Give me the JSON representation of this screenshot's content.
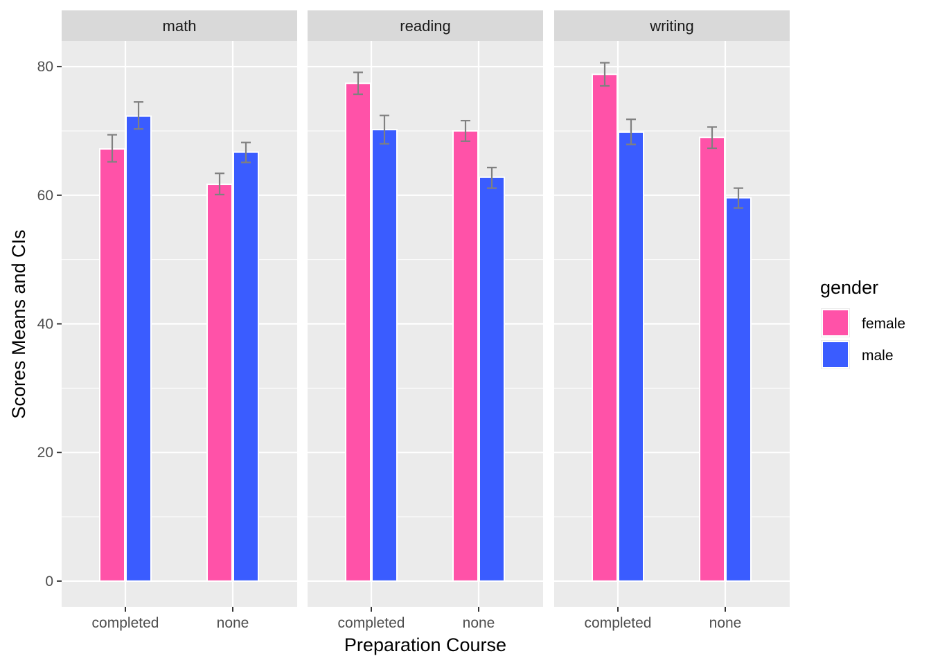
{
  "chart_data": {
    "type": "bar",
    "facets": [
      "math",
      "reading",
      "writing"
    ],
    "categories": [
      "completed",
      "none"
    ],
    "xlabel": "Preparation Course",
    "ylabel": "Scores Means and CIs",
    "ylim": [
      -4,
      84
    ],
    "yticks": [
      0,
      20,
      40,
      60,
      80
    ],
    "grid": true,
    "legend": {
      "title": "gender",
      "placement": "right"
    },
    "series": [
      {
        "name": "female",
        "color": "#FF52A8",
        "values": {
          "math": [
            67.2,
            61.7
          ],
          "reading": [
            77.4,
            70.0
          ],
          "writing": [
            78.8,
            69.0
          ]
        },
        "ci_low": {
          "math": [
            65.2,
            60.1
          ],
          "reading": [
            75.7,
            68.4
          ],
          "writing": [
            77.0,
            67.3
          ]
        },
        "ci_high": {
          "math": [
            69.4,
            63.4
          ],
          "reading": [
            79.1,
            71.6
          ],
          "writing": [
            80.6,
            70.6
          ]
        }
      },
      {
        "name": "male",
        "color": "#3A5CFF",
        "values": {
          "math": [
            72.3,
            66.7
          ],
          "reading": [
            70.2,
            62.8
          ],
          "writing": [
            69.8,
            59.6
          ]
        },
        "ci_low": {
          "math": [
            70.3,
            65.1
          ],
          "reading": [
            68.0,
            61.1
          ],
          "writing": [
            67.9,
            58.0
          ]
        },
        "ci_high": {
          "math": [
            74.5,
            68.2
          ],
          "reading": [
            72.4,
            64.3
          ],
          "writing": [
            71.8,
            61.1
          ]
        }
      }
    ]
  }
}
